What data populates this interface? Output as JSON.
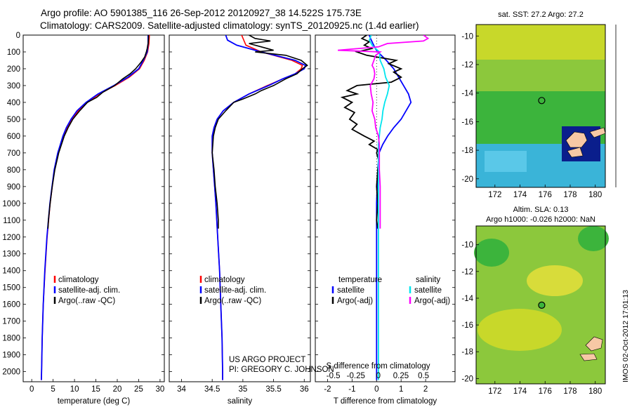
{
  "header": {
    "title_line1": "Argo profile: AO 5901385_116 26-Sep-2012 20120927_38 14.522S 175.73E",
    "title_line2": "Climatology: CARS2009. Satellite-adjusted climatology: synTS_20120925.nc (1.4d earlier)"
  },
  "maps": {
    "sst_title": "sat. SST: 27.2 Argo: 27.2",
    "sla_title1": "Altim. SLA: 0.13",
    "sla_title2": "Argo h1000: -0.026 h2000: NaN",
    "float_lon": 175.73,
    "float_lat": -14.522,
    "lon_ticks": [
      "172",
      "174",
      "176",
      "178",
      "180"
    ],
    "lat_ticks": [
      "-10",
      "-12",
      "-14",
      "-16",
      "-18",
      "-20"
    ],
    "side_stamp": "IMOS 02-Oct-2012 17:01:13"
  },
  "annotations": {
    "project": "US ARGO PROJECT",
    "pi": "PI: GREGORY C. JOHNSON"
  },
  "colors": {
    "climatology": "#ff0000",
    "satellite": "#0000ff",
    "argo": "#000000",
    "sal_satellite": "#00e5ee",
    "sal_argo": "#ff00ff"
  },
  "chart_data": [
    {
      "type": "line",
      "xlabel": "temperature (deg C)",
      "ylabel": "",
      "xlim": [
        -2,
        31
      ],
      "ylim": [
        2060,
        0
      ],
      "xticks": [
        "0",
        "5",
        "10",
        "15",
        "20",
        "25",
        "30"
      ],
      "yticks": [
        "0",
        "100",
        "200",
        "300",
        "400",
        "500",
        "600",
        "700",
        "800",
        "900",
        "1000",
        "1100",
        "1200",
        "1300",
        "1400",
        "1500",
        "1600",
        "1700",
        "1800",
        "1900",
        "2000"
      ],
      "legend": [
        "climatology",
        "satellite-adj. clim.",
        "Argo(..raw -QC)"
      ],
      "series": [
        {
          "name": "climatology",
          "depth": [
            0,
            50,
            100,
            150,
            200,
            250,
            300,
            350,
            400,
            450,
            500,
            550,
            600,
            700,
            800,
            900,
            1000,
            1200,
            1400,
            1600,
            1800,
            2000,
            2050
          ],
          "values": [
            27.5,
            27.4,
            27.1,
            26.3,
            25.2,
            22.8,
            19.5,
            15.8,
            13.0,
            10.9,
            9.4,
            8.3,
            7.4,
            6.2,
            5.3,
            4.8,
            4.3,
            3.6,
            3.1,
            2.7,
            2.45,
            2.3,
            2.25
          ]
        },
        {
          "name": "satellite-adj. clim.",
          "depth": [
            0,
            50,
            100,
            150,
            200,
            250,
            300,
            350,
            400,
            450,
            500,
            550,
            600,
            700,
            800,
            900,
            1000,
            1200,
            1400,
            1600,
            1800,
            2000,
            2050
          ],
          "values": [
            27.2,
            27.2,
            27.0,
            26.1,
            25.0,
            22.5,
            19.2,
            15.5,
            12.7,
            10.6,
            9.2,
            8.1,
            7.3,
            6.1,
            5.25,
            4.75,
            4.25,
            3.55,
            3.05,
            2.7,
            2.45,
            2.3,
            2.25
          ]
        },
        {
          "name": "Argo(..raw -QC)",
          "depth": [
            0,
            20,
            50,
            80,
            100,
            130,
            160,
            200,
            230,
            260,
            300,
            340,
            370,
            400,
            450,
            500,
            550,
            600,
            700,
            800,
            900,
            1000,
            1100,
            1150
          ],
          "values": [
            27.3,
            27.3,
            27.2,
            27.0,
            26.8,
            26.4,
            25.6,
            24.3,
            23.0,
            21.3,
            19.4,
            16.6,
            15.2,
            13.0,
            11.2,
            9.6,
            8.5,
            7.6,
            6.3,
            5.4,
            4.8,
            4.3,
            3.9,
            3.8
          ]
        }
      ]
    },
    {
      "type": "line",
      "xlabel": "salinity",
      "ylabel": "",
      "xlim": [
        33.8,
        36.1
      ],
      "ylim": [
        2060,
        0
      ],
      "xticks": [
        "34",
        "34.5",
        "35",
        "35.5",
        "36"
      ],
      "yticks": [],
      "legend": [
        "climatology",
        "satellite-adj. clim.",
        "Argo(..raw -QC)"
      ],
      "series": [
        {
          "name": "climatology",
          "depth": [
            0,
            60,
            100,
            150,
            180,
            200,
            230,
            260,
            300,
            350,
            400,
            450,
            500,
            550,
            600,
            700,
            800,
            900,
            1000,
            1200,
            1400,
            1600,
            1800,
            2000,
            2050
          ],
          "values": [
            34.98,
            35.05,
            35.3,
            35.8,
            35.97,
            35.95,
            35.85,
            35.65,
            35.4,
            35.1,
            34.85,
            34.68,
            34.58,
            34.53,
            34.5,
            34.5,
            34.52,
            34.54,
            34.56,
            34.59,
            34.62,
            34.64,
            34.66,
            34.67,
            34.67
          ]
        },
        {
          "name": "satellite-adj. clim.",
          "depth": [
            0,
            30,
            60,
            100,
            150,
            180,
            200,
            230,
            260,
            300,
            350,
            400,
            450,
            500,
            550,
            600,
            700,
            800,
            900,
            1000,
            1200,
            1400,
            1600,
            1800,
            2000,
            2050
          ],
          "values": [
            34.72,
            34.75,
            34.9,
            35.3,
            35.85,
            36.02,
            36.0,
            35.85,
            35.65,
            35.42,
            35.1,
            34.85,
            34.68,
            34.58,
            34.53,
            34.5,
            34.5,
            34.52,
            34.54,
            34.56,
            34.59,
            34.62,
            34.64,
            34.66,
            34.67,
            34.67
          ]
        },
        {
          "name": "Argo(..raw -QC)",
          "depth": [
            0,
            20,
            35,
            50,
            70,
            90,
            100,
            120,
            150,
            180,
            200,
            230,
            260,
            300,
            330,
            350,
            380,
            400,
            450,
            500,
            550,
            600,
            700,
            800,
            900,
            1000,
            1100,
            1150
          ],
          "values": [
            35.1,
            35.2,
            35.45,
            35.1,
            35.3,
            35.5,
            35.2,
            35.7,
            35.95,
            36.05,
            35.97,
            35.88,
            35.7,
            35.5,
            35.3,
            35.2,
            35.0,
            34.85,
            34.72,
            34.6,
            34.55,
            34.52,
            34.5,
            34.53,
            34.55,
            34.58,
            34.6,
            34.6
          ]
        }
      ]
    },
    {
      "type": "line",
      "xlabel": "T difference from climatology",
      "xlabel2": "S difference from climatology",
      "ylabel": "",
      "xlim": [
        -2.5,
        3.2
      ],
      "ylim": [
        2060,
        0
      ],
      "xticks": [
        "-2",
        "-1",
        "0",
        "1",
        "2"
      ],
      "xticks2": [
        "-0.5",
        "-0.25",
        "0",
        "0.25",
        "0.5"
      ],
      "yticks": [],
      "legend": [
        "temperature",
        "satellite",
        "Argo(-adj)",
        "salinity",
        "satellite",
        "Argo(-adj)"
      ],
      "series": [
        {
          "name": "satellite",
          "variable": "temperature",
          "depth": [
            0,
            20,
            50,
            80,
            100,
            150,
            200,
            250,
            300,
            350,
            400,
            450,
            500,
            550,
            600,
            650,
            700,
            800,
            1000,
            1200,
            1600,
            2050
          ],
          "values": [
            -0.3,
            -0.25,
            -0.15,
            -0.05,
            0.05,
            0.4,
            0.7,
            0.9,
            1.1,
            1.3,
            1.4,
            1.2,
            1.0,
            0.7,
            0.45,
            0.25,
            0.1,
            0.05,
            0.0,
            0.0,
            0.0,
            0.0
          ]
        },
        {
          "name": "Argo(-adj)",
          "variable": "temperature",
          "depth": [
            0,
            20,
            40,
            60,
            80,
            100,
            120,
            150,
            170,
            200,
            220,
            250,
            280,
            300,
            330,
            350,
            370,
            400,
            430,
            460,
            500,
            530,
            560,
            600,
            630,
            650,
            680,
            700,
            750,
            800,
            900,
            1000,
            1100,
            1150
          ],
          "values": [
            -0.4,
            -0.6,
            -0.3,
            -0.5,
            -0.2,
            -0.8,
            -0.4,
            0.8,
            0.5,
            1.0,
            0.7,
            1.0,
            0.6,
            -0.8,
            -1.2,
            -0.8,
            -1.4,
            -1.0,
            -1.3,
            -0.9,
            -1.1,
            -0.8,
            -1.0,
            -0.5,
            -0.1,
            -0.3,
            0.05,
            0.0,
            0.1,
            0.05,
            0.0,
            0.05,
            0.0,
            0.05
          ]
        },
        {
          "name": "satellite",
          "variable": "salinity",
          "depth": [
            0,
            30,
            60,
            80,
            100,
            150,
            200,
            250,
            300,
            350,
            400,
            450,
            500,
            550,
            600,
            650,
            700,
            800,
            1000,
            1300,
            1600,
            2050
          ],
          "values": [
            -0.08,
            -0.1,
            -0.07,
            -0.03,
            0.01,
            0.02,
            0.06,
            0.08,
            0.12,
            0.1,
            0.07,
            0.05,
            0.04,
            0.02,
            0.01,
            0.0,
            0.0,
            0.0,
            0.0,
            0.0,
            0.0,
            0.0
          ]
        },
        {
          "name": "Argo(-adj)",
          "variable": "salinity",
          "depth": [
            0,
            20,
            35,
            50,
            70,
            90,
            100,
            120,
            150,
            180,
            200,
            230,
            260,
            300,
            350,
            400,
            450,
            500,
            550,
            600,
            650,
            700,
            800,
            900,
            1000,
            1100,
            1150
          ],
          "values": [
            0.5,
            0.55,
            0.5,
            0.1,
            0.0,
            -0.45,
            0.02,
            -0.03,
            -0.05,
            -0.07,
            -0.05,
            -0.04,
            -0.05,
            -0.09,
            -0.08,
            -0.06,
            -0.07,
            -0.04,
            -0.03,
            0.0,
            0.01,
            0.01,
            0.01,
            0.02,
            0.02,
            0.02,
            0.02
          ]
        }
      ]
    }
  ]
}
